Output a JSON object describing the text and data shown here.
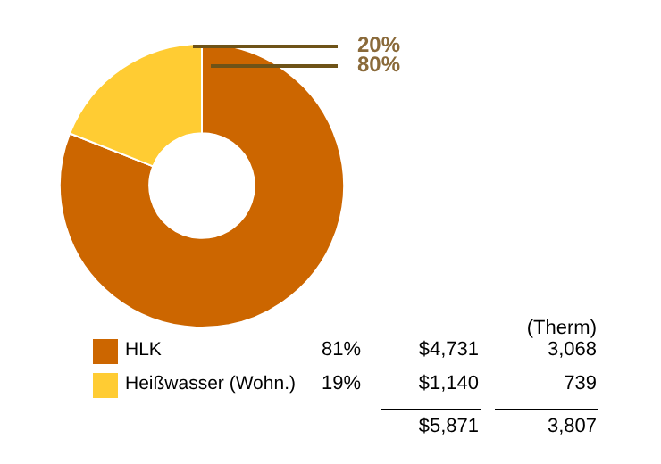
{
  "chart_data": {
    "type": "donut",
    "categories": [
      "HLK",
      "Heißwasser (Wohn.)"
    ],
    "values": [
      81,
      19
    ],
    "colors": [
      "#cc6600",
      "#ffcc33"
    ],
    "value_labels": [
      "81%",
      "19%"
    ],
    "legend": "bottom",
    "annotations": [
      "20%",
      "80%",
      "(Therm)",
      "$4,731",
      "3,068",
      "$1,140",
      "739",
      "$5,871",
      "3,807"
    ]
  }
}
